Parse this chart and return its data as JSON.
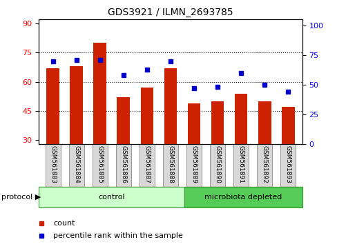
{
  "title": "GDS3921 / ILMN_2693785",
  "samples": [
    "GSM561883",
    "GSM561884",
    "GSM561885",
    "GSM561886",
    "GSM561887",
    "GSM561888",
    "GSM561889",
    "GSM561890",
    "GSM561891",
    "GSM561892",
    "GSM561893"
  ],
  "counts": [
    67,
    68,
    80,
    52,
    57,
    67,
    49,
    50,
    54,
    50,
    47
  ],
  "percentile_ranks": [
    70,
    71,
    71,
    58,
    63,
    70,
    47,
    48,
    60,
    50,
    44
  ],
  "n_control": 6,
  "n_micro": 5,
  "bar_color": "#CC2200",
  "dot_color": "#0000CC",
  "ylim_left": [
    28,
    92
  ],
  "ylim_right": [
    0,
    105
  ],
  "yticks_left": [
    30,
    45,
    60,
    75,
    90
  ],
  "yticks_right": [
    0,
    25,
    50,
    75,
    100
  ],
  "control_color": "#CCFFCC",
  "microbiota_color": "#55CC55",
  "label_bg": "#D8D8D8"
}
